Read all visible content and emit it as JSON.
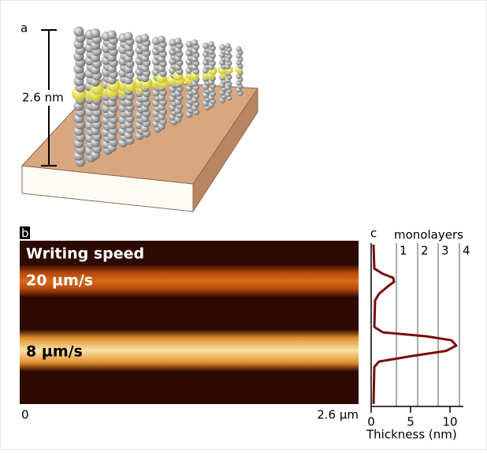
{
  "panel_a": {
    "label": "a",
    "scale_label": "2.6 nm"
  },
  "panel_b": {
    "label": "b",
    "title": "Writing speed",
    "line_labels": [
      "20 µm/s",
      "8 µm/s"
    ],
    "x_start": "0",
    "x_end": "2.6 µm"
  },
  "chart_data": {
    "type": "line",
    "label": "c",
    "xlabel": "Thickness (nm)",
    "x2label": "monolayers",
    "color": "#7a0c0c",
    "x": [
      0.3,
      0.4,
      1.5,
      2.8,
      2.9,
      2.2,
      1.0,
      0.5,
      0.4,
      1.5,
      7,
      10.2,
      10.8,
      9.5,
      5,
      1.0,
      0.4,
      0.3
    ],
    "y": [
      0,
      0.18,
      0.22,
      0.25,
      0.28,
      0.31,
      0.37,
      0.42,
      0.62,
      0.66,
      0.69,
      0.72,
      0.76,
      0.8,
      0.84,
      0.88,
      0.92,
      1.2
    ],
    "xlim": [
      0,
      11.7
    ],
    "ylim": [
      0,
      1.2
    ],
    "xticks": [
      0,
      5,
      10
    ],
    "x2ticks": [
      {
        "value": 3.2,
        "label": "1"
      },
      {
        "value": 5.9,
        "label": "2"
      },
      {
        "value": 8.5,
        "label": "3"
      },
      {
        "value": 11.2,
        "label": "4"
      }
    ]
  }
}
